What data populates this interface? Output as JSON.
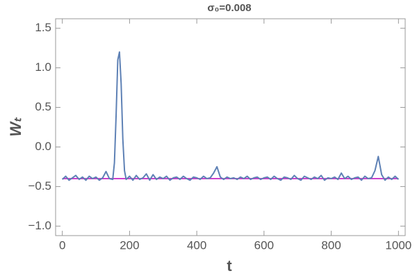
{
  "chart_data": {
    "type": "line",
    "title": "σ₀=0.008",
    "x_label": "t",
    "y_label": "Wₜ",
    "xlim": [
      -20,
      1020
    ],
    "ylim": [
      -1.12,
      1.62
    ],
    "xticks": [
      0,
      200,
      400,
      600,
      800,
      1000
    ],
    "yticks": [
      {
        "value": -1.0,
        "label": "−1.0"
      },
      {
        "value": -0.5,
        "label": "−0.5"
      },
      {
        "value": 0.0,
        "label": "0.0"
      },
      {
        "value": 0.5,
        "label": "0.5"
      },
      {
        "value": 1.0,
        "label": "1.0"
      },
      {
        "value": 1.5,
        "label": "1.5"
      }
    ],
    "series": [
      {
        "color": "#cc3fcc",
        "x": [
          0,
          1000
        ],
        "values": [
          -0.4,
          -0.4
        ]
      },
      {
        "color": "#5e81b5",
        "x": [
          0,
          10,
          20,
          30,
          40,
          50,
          60,
          70,
          80,
          90,
          100,
          110,
          120,
          130,
          140,
          150,
          155,
          160,
          165,
          170,
          175,
          180,
          185,
          190,
          200,
          210,
          220,
          230,
          240,
          250,
          260,
          270,
          280,
          290,
          300,
          310,
          320,
          330,
          340,
          350,
          360,
          370,
          380,
          390,
          400,
          410,
          420,
          430,
          440,
          450,
          460,
          470,
          480,
          490,
          500,
          510,
          520,
          530,
          540,
          550,
          560,
          570,
          580,
          590,
          600,
          610,
          620,
          630,
          640,
          650,
          660,
          670,
          680,
          690,
          700,
          710,
          720,
          730,
          740,
          750,
          760,
          770,
          780,
          790,
          800,
          810,
          820,
          830,
          840,
          850,
          860,
          870,
          880,
          890,
          900,
          910,
          920,
          930,
          940,
          950,
          960,
          970,
          980,
          990,
          1000
        ],
        "values": [
          -0.41,
          -0.37,
          -0.42,
          -0.39,
          -0.36,
          -0.41,
          -0.38,
          -0.42,
          -0.37,
          -0.4,
          -0.38,
          -0.42,
          -0.39,
          -0.31,
          -0.4,
          -0.41,
          -0.2,
          0.4,
          1.1,
          1.2,
          0.8,
          0.1,
          -0.3,
          -0.41,
          -0.37,
          -0.42,
          -0.36,
          -0.41,
          -0.39,
          -0.34,
          -0.42,
          -0.35,
          -0.41,
          -0.38,
          -0.4,
          -0.37,
          -0.42,
          -0.39,
          -0.38,
          -0.41,
          -0.37,
          -0.4,
          -0.42,
          -0.38,
          -0.39,
          -0.41,
          -0.37,
          -0.4,
          -0.39,
          -0.33,
          -0.25,
          -0.38,
          -0.41,
          -0.38,
          -0.4,
          -0.39,
          -0.41,
          -0.38,
          -0.4,
          -0.37,
          -0.41,
          -0.39,
          -0.38,
          -0.41,
          -0.39,
          -0.38,
          -0.41,
          -0.37,
          -0.4,
          -0.42,
          -0.38,
          -0.39,
          -0.41,
          -0.36,
          -0.4,
          -0.42,
          -0.37,
          -0.39,
          -0.41,
          -0.38,
          -0.4,
          -0.36,
          -0.42,
          -0.39,
          -0.4,
          -0.38,
          -0.41,
          -0.33,
          -0.4,
          -0.37,
          -0.41,
          -0.39,
          -0.38,
          -0.42,
          -0.37,
          -0.4,
          -0.39,
          -0.3,
          -0.12,
          -0.35,
          -0.42,
          -0.38,
          -0.41,
          -0.37,
          -0.41
        ]
      }
    ]
  }
}
